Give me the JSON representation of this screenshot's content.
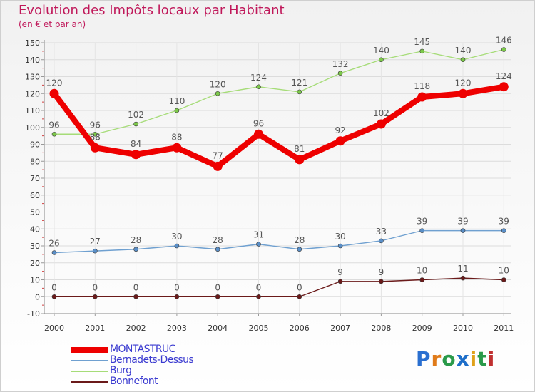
{
  "title": "Evolution des Impôts locaux par Habitant",
  "subtitle": "(en € et par an)",
  "logo": {
    "text": "Proxiti",
    "colors": [
      "#2a6fd0",
      "#e07b1a",
      "#2a9a4a",
      "#1d6ec9",
      "#e0a11a",
      "#2a9a4a",
      "#c03030"
    ]
  },
  "chart_data": {
    "type": "line",
    "title": "Evolution des Impôts locaux par Habitant",
    "subtitle": "(en € et par an)",
    "xlabel": "",
    "ylabel": "",
    "x": [
      "2000",
      "2001",
      "2002",
      "2003",
      "2004",
      "2005",
      "2006",
      "2007",
      "2008",
      "2009",
      "2010",
      "2011"
    ],
    "ylim": [
      -10,
      150
    ],
    "yticks": [
      -10,
      0,
      10,
      20,
      30,
      40,
      50,
      60,
      70,
      80,
      90,
      100,
      110,
      120,
      130,
      140,
      150
    ],
    "grid": true,
    "legend_position": "bottom-left",
    "series": [
      {
        "name": "Bonnefont",
        "color": "#6b1a1a",
        "marker": "#6b1a1a",
        "width": "thin",
        "values": [
          0,
          0,
          0,
          0,
          0,
          0,
          0,
          9,
          9,
          10,
          11,
          10
        ]
      },
      {
        "name": "Bernadets-Dessus",
        "color": "#6fa0d0",
        "marker": "#5a8fc8",
        "width": "thin",
        "values": [
          26,
          27,
          28,
          30,
          28,
          31,
          28,
          30,
          33,
          39,
          39,
          39
        ]
      },
      {
        "name": "Burg",
        "color": "#a6dc78",
        "marker": "#7cc84a",
        "width": "thin",
        "values": [
          96,
          96,
          102,
          110,
          120,
          124,
          121,
          132,
          140,
          145,
          140,
          146
        ]
      },
      {
        "name": "MONTASTRUC",
        "color": "#ee0000",
        "marker": "#ee0000",
        "width": "thick",
        "values": [
          120,
          88,
          84,
          88,
          77,
          96,
          81,
          92,
          102,
          118,
          120,
          124
        ]
      }
    ],
    "legend_order": [
      "MONTASTRUC",
      "Bernadets-Dessus",
      "Burg",
      "Bonnefont"
    ]
  }
}
